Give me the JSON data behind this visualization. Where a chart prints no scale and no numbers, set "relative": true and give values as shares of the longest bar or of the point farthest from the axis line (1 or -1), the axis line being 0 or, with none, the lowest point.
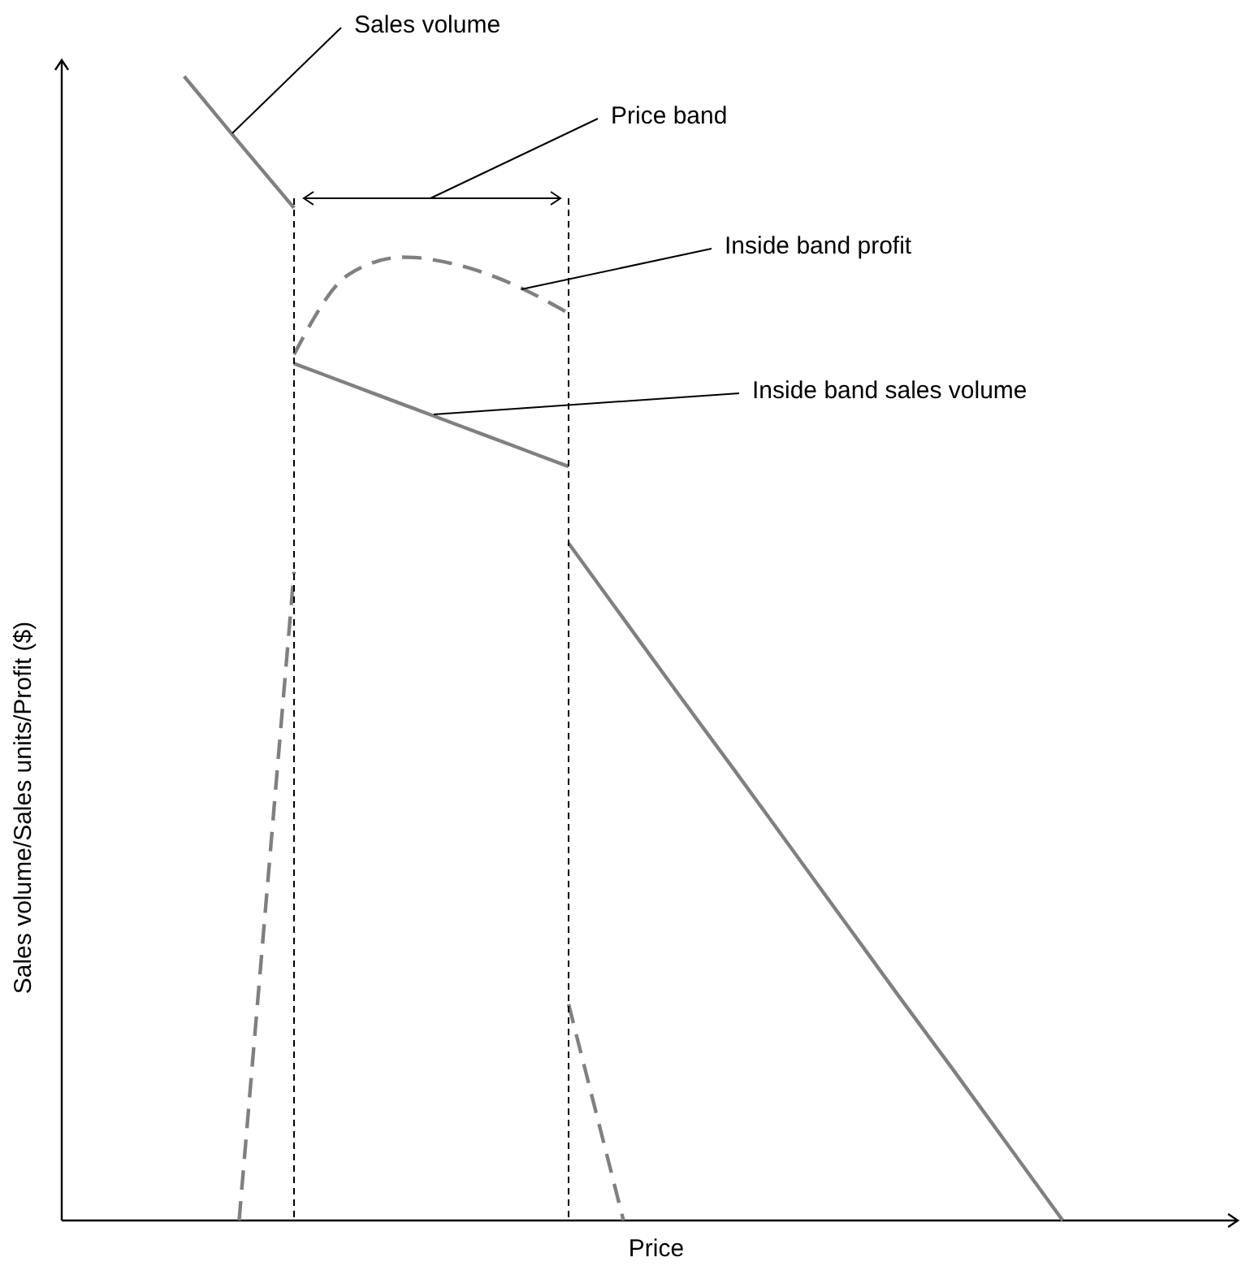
{
  "chart_data": {
    "type": "line",
    "relative": true,
    "xlabel": "Price",
    "ylabel": "Sales volume/Sales units/Profit ($)",
    "categories": [
      null,
      null,
      null,
      null,
      null,
      null,
      null,
      null,
      null,
      null,
      null,
      null,
      null,
      null,
      null,
      null,
      null,
      null,
      null,
      null
    ],
    "series": [
      {
        "color": "#808080",
        "line_style": "solid",
        "values": [
          1.0,
          0.942,
          0.885,
          null,
          null,
          null,
          null,
          null,
          null,
          null,
          null,
          null,
          null,
          null,
          null,
          null,
          null,
          null,
          null,
          null
        ]
      },
      {
        "color": "#808080",
        "line_style": "solid",
        "values": [
          null,
          null,
          0.749,
          0.731,
          0.713,
          0.695,
          0.677,
          0.659,
          null,
          null,
          null,
          null,
          null,
          null,
          null,
          null,
          null,
          null,
          null,
          null
        ]
      },
      {
        "color": "#808080",
        "line_style": "solid",
        "values": [
          null,
          null,
          null,
          null,
          null,
          null,
          null,
          0.592,
          0.526,
          0.46,
          0.395,
          0.329,
          0.263,
          0.197,
          0.132,
          0.066,
          0,
          null,
          null,
          null
        ]
      },
      {
        "color": "#808080",
        "line_style": "dashed",
        "values": [
          null,
          0,
          0.567,
          null,
          null,
          null,
          null,
          null,
          null,
          null,
          null,
          null,
          null,
          null,
          null,
          null,
          null,
          null,
          null,
          null
        ]
      },
      {
        "color": "#808080",
        "line_style": "dashed",
        "values": [
          null,
          null,
          0.757,
          0.827,
          0.842,
          0.835,
          0.818,
          0.793,
          null,
          null,
          null,
          null,
          null,
          null,
          null,
          null,
          null,
          null,
          null,
          null
        ]
      },
      {
        "color": "#808080",
        "line_style": "dashed",
        "values": [
          null,
          null,
          null,
          null,
          null,
          null,
          null,
          0.189,
          0,
          null,
          null,
          null,
          null,
          null,
          null,
          null,
          null,
          null,
          null,
          null
        ]
      }
    ],
    "annotations": [
      "Sales volume",
      "Price band",
      "Inside band profit",
      "Inside band sales volume"
    ]
  }
}
